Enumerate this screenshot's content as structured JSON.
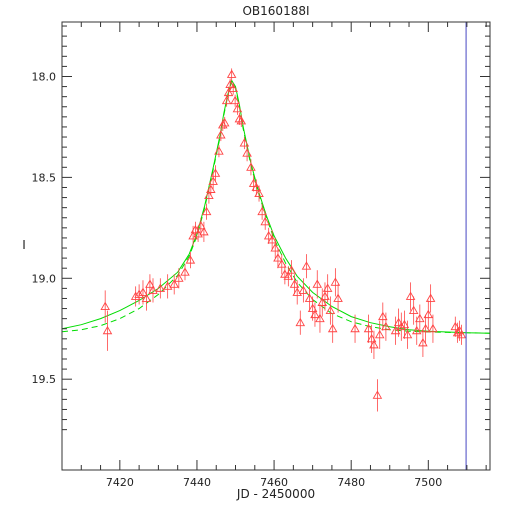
{
  "colors": {
    "frame": "#333333",
    "points": "#ff4444",
    "model_solid": "#00dd00",
    "model_dashed": "#00dd00",
    "vline": "#6666cc"
  },
  "chart_data": {
    "type": "scatter",
    "title": "OB160188I",
    "xlabel": "JD - 2450000",
    "ylabel": "I",
    "xlim": [
      7405,
      7516
    ],
    "ylim": [
      19.95,
      17.73
    ],
    "y_inverted": true,
    "grid": false,
    "x_ticks": [
      7420,
      7440,
      7460,
      7480,
      7500
    ],
    "x_tick_labels": [
      "7420",
      "7440",
      "7460",
      "7480",
      "7500"
    ],
    "y_ticks": [
      18.0,
      18.5,
      19.0,
      19.5
    ],
    "y_tick_labels": [
      "18.0",
      "18.5",
      "19.0",
      "19.5"
    ],
    "vertical_line_x": 7509.8,
    "marker": "triangle",
    "series": [
      {
        "points": [
          [
            7416.2,
            19.14,
            0.08
          ],
          [
            7416.8,
            19.26,
            0.1
          ],
          [
            7424.1,
            19.09,
            0.05
          ],
          [
            7425.0,
            19.08,
            0.05
          ],
          [
            7426.0,
            19.07,
            0.06
          ],
          [
            7426.9,
            19.1,
            0.06
          ],
          [
            7427.8,
            19.03,
            0.05
          ],
          [
            7428.6,
            19.06,
            0.06
          ],
          [
            7430.5,
            19.05,
            0.05
          ],
          [
            7432.4,
            19.04,
            0.06
          ],
          [
            7434.1,
            19.03,
            0.05
          ],
          [
            7435.3,
            19.0,
            0.05
          ],
          [
            7436.9,
            18.97,
            0.04
          ],
          [
            7438.3,
            18.91,
            0.04
          ],
          [
            7439.0,
            18.79,
            0.05
          ],
          [
            7439.6,
            18.76,
            0.04
          ],
          [
            7440.3,
            18.78,
            0.04
          ],
          [
            7441.0,
            18.74,
            0.04
          ],
          [
            7441.8,
            18.77,
            0.05
          ],
          [
            7442.5,
            18.67,
            0.04
          ],
          [
            7443.1,
            18.59,
            0.04
          ],
          [
            7443.6,
            18.56,
            0.03
          ],
          [
            7444.2,
            18.52,
            0.04
          ],
          [
            7444.8,
            18.48,
            0.04
          ],
          [
            7445.7,
            18.37,
            0.03
          ],
          [
            7446.2,
            18.29,
            0.03
          ],
          [
            7446.7,
            18.24,
            0.03
          ],
          [
            7447.2,
            18.23,
            0.03
          ],
          [
            7447.7,
            18.12,
            0.03
          ],
          [
            7448.2,
            18.08,
            0.03
          ],
          [
            7448.6,
            18.04,
            0.03
          ],
          [
            7449.0,
            17.99,
            0.03
          ],
          [
            7449.4,
            18.06,
            0.03
          ],
          [
            7449.9,
            18.12,
            0.03
          ],
          [
            7450.5,
            18.16,
            0.03
          ],
          [
            7451.0,
            18.21,
            0.03
          ],
          [
            7451.5,
            18.22,
            0.03
          ],
          [
            7452.3,
            18.33,
            0.03
          ],
          [
            7453.0,
            18.38,
            0.04
          ],
          [
            7454.0,
            18.45,
            0.04
          ],
          [
            7454.7,
            18.53,
            0.04
          ],
          [
            7455.4,
            18.55,
            0.04
          ],
          [
            7456.1,
            18.58,
            0.04
          ],
          [
            7456.9,
            18.67,
            0.04
          ],
          [
            7457.7,
            18.72,
            0.04
          ],
          [
            7458.6,
            18.79,
            0.04
          ],
          [
            7459.5,
            18.81,
            0.05
          ],
          [
            7460.3,
            18.85,
            0.05
          ],
          [
            7461.0,
            18.9,
            0.05
          ],
          [
            7462.0,
            18.93,
            0.05
          ],
          [
            7462.8,
            18.98,
            0.05
          ],
          [
            7463.7,
            18.99,
            0.05
          ],
          [
            7464.5,
            18.96,
            0.05
          ],
          [
            7465.3,
            19.03,
            0.05
          ],
          [
            7466.0,
            19.07,
            0.06
          ],
          [
            7466.8,
            19.22,
            0.06
          ],
          [
            7467.6,
            19.06,
            0.06
          ],
          [
            7468.4,
            18.94,
            0.06
          ],
          [
            7469.2,
            19.1,
            0.06
          ],
          [
            7470.0,
            19.15,
            0.06
          ],
          [
            7470.6,
            19.18,
            0.06
          ],
          [
            7471.2,
            19.03,
            0.07
          ],
          [
            7471.9,
            19.2,
            0.07
          ],
          [
            7472.5,
            19.12,
            0.07
          ],
          [
            7473.2,
            19.09,
            0.07
          ],
          [
            7473.9,
            19.05,
            0.07
          ],
          [
            7474.6,
            19.16,
            0.07
          ],
          [
            7475.2,
            19.25,
            0.07
          ],
          [
            7475.9,
            19.02,
            0.07
          ],
          [
            7476.6,
            19.1,
            0.07
          ],
          [
            7481.0,
            19.25,
            0.07
          ],
          [
            7484.5,
            19.25,
            0.07
          ],
          [
            7485.3,
            19.3,
            0.07
          ],
          [
            7485.9,
            19.33,
            0.07
          ],
          [
            7486.8,
            19.58,
            0.08
          ],
          [
            7487.4,
            19.28,
            0.07
          ],
          [
            7488.2,
            19.19,
            0.07
          ],
          [
            7489.0,
            19.24,
            0.07
          ],
          [
            7491.5,
            19.26,
            0.07
          ],
          [
            7492.3,
            19.22,
            0.07
          ],
          [
            7493.0,
            19.24,
            0.07
          ],
          [
            7493.8,
            19.23,
            0.07
          ],
          [
            7494.6,
            19.28,
            0.07
          ],
          [
            7495.4,
            19.09,
            0.07
          ],
          [
            7496.2,
            19.16,
            0.07
          ],
          [
            7497.0,
            19.26,
            0.07
          ],
          [
            7497.8,
            19.2,
            0.07
          ],
          [
            7498.6,
            19.32,
            0.07
          ],
          [
            7499.3,
            19.25,
            0.07
          ],
          [
            7500.0,
            19.18,
            0.07
          ],
          [
            7500.6,
            19.1,
            0.07
          ],
          [
            7501.2,
            19.25,
            0.07
          ],
          [
            7507.0,
            19.24,
            0.05
          ],
          [
            7507.6,
            19.27,
            0.05
          ],
          [
            7508.1,
            19.26,
            0.05
          ],
          [
            7508.6,
            19.28,
            0.05
          ]
        ]
      }
    ],
    "models": [
      {
        "style": "solid",
        "curve": [
          [
            7405,
            19.25
          ],
          [
            7410,
            19.23
          ],
          [
            7415,
            19.2
          ],
          [
            7420,
            19.16
          ],
          [
            7425,
            19.11
          ],
          [
            7430,
            19.05
          ],
          [
            7435,
            18.97
          ],
          [
            7438,
            18.88
          ],
          [
            7440,
            18.78
          ],
          [
            7442,
            18.64
          ],
          [
            7444,
            18.47
          ],
          [
            7446,
            18.29
          ],
          [
            7447,
            18.18
          ],
          [
            7448,
            18.09
          ],
          [
            7449,
            18.02
          ],
          [
            7450,
            18.05
          ],
          [
            7451,
            18.14
          ],
          [
            7452,
            18.25
          ],
          [
            7454,
            18.43
          ],
          [
            7456,
            18.57
          ],
          [
            7458,
            18.69
          ],
          [
            7460,
            18.79
          ],
          [
            7463,
            18.9
          ],
          [
            7466,
            18.99
          ],
          [
            7470,
            19.07
          ],
          [
            7475,
            19.14
          ],
          [
            7480,
            19.19
          ],
          [
            7485,
            19.22
          ],
          [
            7490,
            19.24
          ],
          [
            7495,
            19.255
          ],
          [
            7500,
            19.262
          ],
          [
            7505,
            19.266
          ],
          [
            7510,
            19.27
          ],
          [
            7516,
            19.272
          ]
        ]
      },
      {
        "style": "dashed",
        "curve": [
          [
            7405,
            19.265
          ],
          [
            7410,
            19.255
          ],
          [
            7415,
            19.235
          ],
          [
            7420,
            19.2
          ],
          [
            7425,
            19.15
          ],
          [
            7430,
            19.08
          ],
          [
            7435,
            18.985
          ],
          [
            7438,
            18.89
          ],
          [
            7440,
            18.79
          ],
          [
            7442,
            18.65
          ],
          [
            7444,
            18.48
          ],
          [
            7446,
            18.3
          ],
          [
            7447,
            18.19
          ],
          [
            7448,
            18.095
          ],
          [
            7449,
            18.025
          ],
          [
            7450,
            18.06
          ],
          [
            7451,
            18.15
          ],
          [
            7452,
            18.26
          ],
          [
            7454,
            18.44
          ],
          [
            7456,
            18.58
          ],
          [
            7458,
            18.7
          ],
          [
            7460,
            18.805
          ],
          [
            7463,
            18.925
          ],
          [
            7466,
            19.02
          ],
          [
            7470,
            19.105
          ],
          [
            7475,
            19.175
          ],
          [
            7480,
            19.215
          ],
          [
            7485,
            19.24
          ],
          [
            7490,
            19.255
          ],
          [
            7495,
            19.262
          ],
          [
            7500,
            19.266
          ],
          [
            7505,
            19.268
          ],
          [
            7510,
            19.27
          ],
          [
            7516,
            19.272
          ]
        ]
      }
    ]
  }
}
